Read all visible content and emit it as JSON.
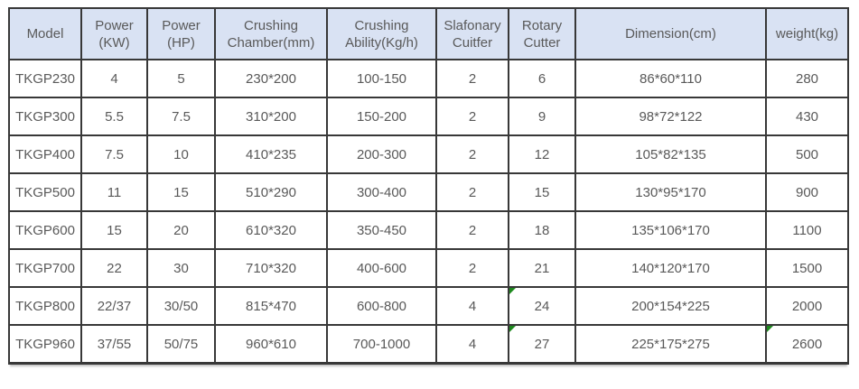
{
  "colors": {
    "header_bg": "#d9e2f3",
    "border": "#383838",
    "text": "#595959",
    "marker_green": "#1e8a1e"
  },
  "table": {
    "columns": [
      {
        "label": "Model"
      },
      {
        "label": "Power\n(KW)"
      },
      {
        "label": "Power\n(HP)"
      },
      {
        "label": "Crushing\nChamber(mm)"
      },
      {
        "label": "Crushing\nAbility(Kg/h)"
      },
      {
        "label": "Slafonary\nCuitfer"
      },
      {
        "label": "Rotary\nCutter"
      },
      {
        "label": "Dimension(cm)"
      },
      {
        "label": "weight(kg)"
      }
    ],
    "rows": [
      [
        "TKGP230",
        "4",
        "5",
        "230*200",
        "100-150",
        "2",
        "6",
        "86*60*110",
        "280"
      ],
      [
        "TKGP300",
        "5.5",
        "7.5",
        "310*200",
        "150-200",
        "2",
        "9",
        "98*72*122",
        "430"
      ],
      [
        "TKGP400",
        "7.5",
        "10",
        "410*235",
        "200-300",
        "2",
        "12",
        "105*82*135",
        "500"
      ],
      [
        "TKGP500",
        "11",
        "15",
        "510*290",
        "300-400",
        "2",
        "15",
        "130*95*170",
        "900"
      ],
      [
        "TKGP600",
        "15",
        "20",
        "610*320",
        "350-450",
        "2",
        "18",
        "135*106*170",
        "1100"
      ],
      [
        "TKGP700",
        "22",
        "30",
        "710*320",
        "400-600",
        "2",
        "21",
        "140*120*170",
        "1500"
      ],
      [
        "TKGP800",
        "22/37",
        "30/50",
        "815*470",
        "600-800",
        "4",
        "24",
        "200*154*225",
        "2000"
      ],
      [
        "TKGP960",
        "37/55",
        "50/75",
        "960*610",
        "700-1000",
        "4",
        "27",
        "225*175*275",
        "2600"
      ]
    ],
    "corner_markers": [
      {
        "row": 6,
        "col": 6
      },
      {
        "row": 7,
        "col": 6
      },
      {
        "row": 7,
        "col": 8
      }
    ]
  },
  "chart_data": {
    "type": "table",
    "title": "",
    "columns": [
      "Model",
      "Power (KW)",
      "Power (HP)",
      "Crushing Chamber(mm)",
      "Crushing Ability(Kg/h)",
      "Slafonary Cuitfer",
      "Rotary Cutter",
      "Dimension(cm)",
      "weight(kg)"
    ],
    "rows": [
      [
        "TKGP230",
        "4",
        "5",
        "230*200",
        "100-150",
        "2",
        "6",
        "86*60*110",
        "280"
      ],
      [
        "TKGP300",
        "5.5",
        "7.5",
        "310*200",
        "150-200",
        "2",
        "9",
        "98*72*122",
        "430"
      ],
      [
        "TKGP400",
        "7.5",
        "10",
        "410*235",
        "200-300",
        "2",
        "12",
        "105*82*135",
        "500"
      ],
      [
        "TKGP500",
        "11",
        "15",
        "510*290",
        "300-400",
        "2",
        "15",
        "130*95*170",
        "900"
      ],
      [
        "TKGP600",
        "15",
        "20",
        "610*320",
        "350-450",
        "2",
        "18",
        "135*106*170",
        "1100"
      ],
      [
        "TKGP700",
        "22",
        "30",
        "710*320",
        "400-600",
        "2",
        "21",
        "140*120*170",
        "1500"
      ],
      [
        "TKGP800",
        "22/37",
        "30/50",
        "815*470",
        "600-800",
        "4",
        "24",
        "200*154*225",
        "2000"
      ],
      [
        "TKGP960",
        "37/55",
        "50/75",
        "960*610",
        "700-1000",
        "4",
        "27",
        "225*175*275",
        "2600"
      ]
    ]
  }
}
